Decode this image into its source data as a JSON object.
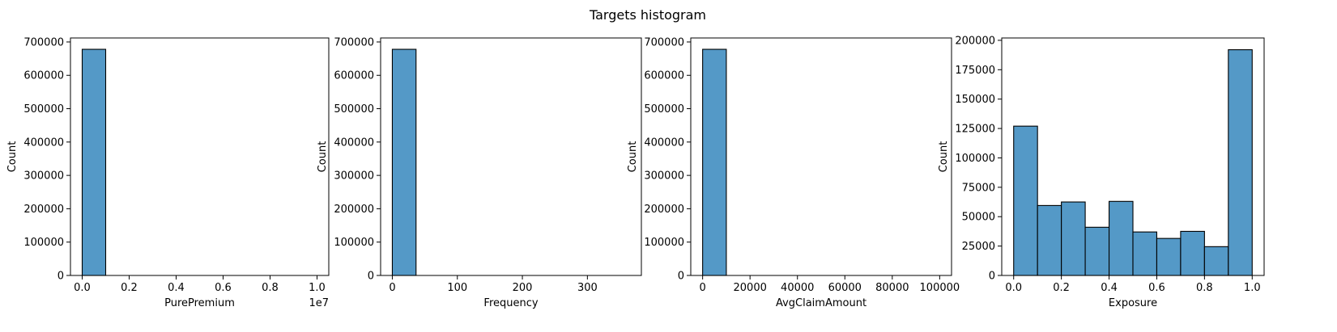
{
  "figure": {
    "title": "Targets histogram"
  },
  "chart_data": [
    {
      "type": "bar",
      "xlabel": "PurePremium",
      "ylabel": "Count",
      "offset_label": "1e7",
      "xlim": [
        -0.05,
        1.05
      ],
      "ylim": [
        0,
        712000
      ],
      "xticks": [
        0.0,
        0.2,
        0.4,
        0.6,
        0.8,
        1.0
      ],
      "xtick_labels": [
        "0.0",
        "0.2",
        "0.4",
        "0.6",
        "0.8",
        "1.0"
      ],
      "yticks": [
        0,
        100000,
        200000,
        300000,
        400000,
        500000,
        600000,
        700000
      ],
      "ytick_labels": [
        "0",
        "100000",
        "200000",
        "300000",
        "400000",
        "500000",
        "600000",
        "700000"
      ],
      "bins": [
        [
          0.0,
          0.1,
          678000
        ]
      ]
    },
    {
      "type": "bar",
      "xlabel": "Frequency",
      "ylabel": "Count",
      "xlim": [
        -18,
        383
      ],
      "ylim": [
        0,
        712000
      ],
      "xticks": [
        0,
        100,
        200,
        300
      ],
      "xtick_labels": [
        "0",
        "100",
        "200",
        "300"
      ],
      "yticks": [
        0,
        100000,
        200000,
        300000,
        400000,
        500000,
        600000,
        700000
      ],
      "ytick_labels": [
        "0",
        "100000",
        "200000",
        "300000",
        "400000",
        "500000",
        "600000",
        "700000"
      ],
      "bins": [
        [
          0,
          36.5,
          678000
        ]
      ]
    },
    {
      "type": "bar",
      "xlabel": "AvgClaimAmount",
      "ylabel": "Count",
      "xlim": [
        -5000,
        105000
      ],
      "ylim": [
        0,
        712000
      ],
      "xticks": [
        0,
        20000,
        40000,
        60000,
        80000,
        100000
      ],
      "xtick_labels": [
        "0",
        "20000",
        "40000",
        "60000",
        "80000",
        "100000"
      ],
      "yticks": [
        0,
        100000,
        200000,
        300000,
        400000,
        500000,
        600000,
        700000
      ],
      "ytick_labels": [
        "0",
        "100000",
        "200000",
        "300000",
        "400000",
        "500000",
        "600000",
        "700000"
      ],
      "bins": [
        [
          0,
          10000,
          678000
        ]
      ]
    },
    {
      "type": "bar",
      "xlabel": "Exposure",
      "ylabel": "Count",
      "xlim": [
        -0.05,
        1.05
      ],
      "ylim": [
        0,
        202000
      ],
      "xticks": [
        0.0,
        0.2,
        0.4,
        0.6,
        0.8,
        1.0
      ],
      "xtick_labels": [
        "0.0",
        "0.2",
        "0.4",
        "0.6",
        "0.8",
        "1.0"
      ],
      "yticks": [
        0,
        25000,
        50000,
        75000,
        100000,
        125000,
        150000,
        175000,
        200000
      ],
      "ytick_labels": [
        "0",
        "25000",
        "50000",
        "75000",
        "100000",
        "125000",
        "150000",
        "175000",
        "200000"
      ],
      "bins": [
        [
          0.0,
          0.1,
          127000
        ],
        [
          0.1,
          0.2,
          59500
        ],
        [
          0.2,
          0.3,
          62500
        ],
        [
          0.3,
          0.4,
          41000
        ],
        [
          0.4,
          0.5,
          63000
        ],
        [
          0.5,
          0.6,
          37000
        ],
        [
          0.6,
          0.7,
          31500
        ],
        [
          0.7,
          0.8,
          37500
        ],
        [
          0.8,
          0.9,
          24500
        ],
        [
          0.9,
          1.0,
          192000
        ]
      ]
    }
  ],
  "colors": {
    "bar_fill": "#5499c7",
    "bar_edge": "#000000"
  }
}
